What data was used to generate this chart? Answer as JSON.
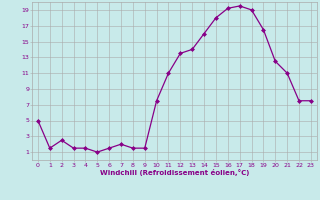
{
  "hours": [
    0,
    1,
    2,
    3,
    4,
    5,
    6,
    7,
    8,
    9,
    10,
    11,
    12,
    13,
    14,
    15,
    16,
    17,
    18,
    19,
    20,
    21,
    22,
    23
  ],
  "values": [
    5,
    1.5,
    2.5,
    1.5,
    1.5,
    1,
    1.5,
    2,
    1.5,
    1.5,
    7.5,
    11,
    13.5,
    14,
    16,
    18,
    19.2,
    19.5,
    19,
    16.5,
    12.5,
    11,
    7.5,
    7.5
  ],
  "line_color": "#880088",
  "marker": "D",
  "marker_size": 2,
  "bg_color": "#c8eaea",
  "grid_color": "#aaaaaa",
  "xlabel": "Windchill (Refroidissement éolien,°C)",
  "xlabel_color": "#880088",
  "tick_color": "#880088",
  "yticks": [
    1,
    3,
    5,
    7,
    9,
    11,
    13,
    15,
    17,
    19
  ],
  "ylim": [
    0,
    20
  ],
  "xlim": [
    -0.5,
    23.5
  ],
  "xticks": [
    0,
    1,
    2,
    3,
    4,
    5,
    6,
    7,
    8,
    9,
    10,
    11,
    12,
    13,
    14,
    15,
    16,
    17,
    18,
    19,
    20,
    21,
    22,
    23
  ]
}
